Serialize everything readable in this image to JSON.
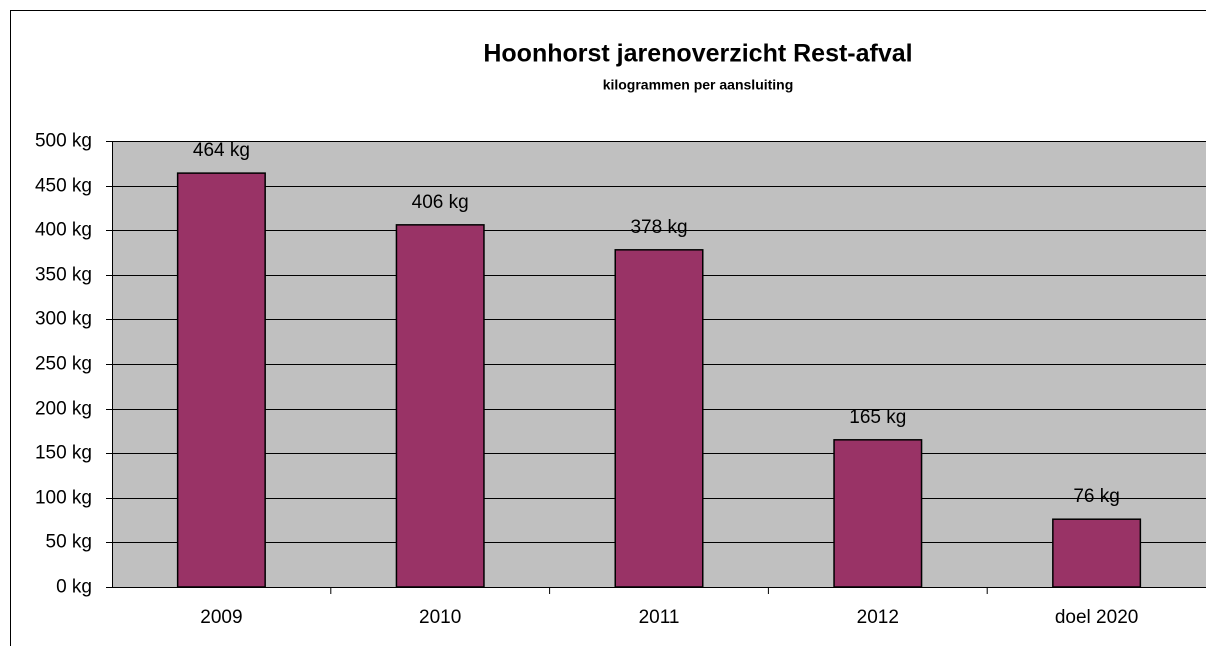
{
  "chart_data": {
    "type": "bar",
    "title": "Hoonhorst jarenoverzicht Rest-afval",
    "subtitle": "kilogrammen per aansluiting",
    "categories": [
      "2009",
      "2010",
      "2011",
      "2012",
      "doel 2020"
    ],
    "values": [
      464,
      406,
      378,
      165,
      76
    ],
    "value_labels": [
      "464 kg",
      "406 kg",
      "378 kg",
      "165 kg",
      "76 kg"
    ],
    "color": "#993366",
    "ylim": [
      0,
      500
    ],
    "yticks": [
      {
        "value": 0,
        "label": "0 kg"
      },
      {
        "value": 50,
        "label": "50 kg"
      },
      {
        "value": 100,
        "label": "100 kg"
      },
      {
        "value": 150,
        "label": "150 kg"
      },
      {
        "value": 200,
        "label": "200 kg"
      },
      {
        "value": 250,
        "label": "250 kg"
      },
      {
        "value": 300,
        "label": "300 kg"
      },
      {
        "value": 350,
        "label": "350 kg"
      },
      {
        "value": 400,
        "label": "400 kg"
      },
      {
        "value": 450,
        "label": "450 kg"
      },
      {
        "value": 500,
        "label": "500 kg"
      }
    ],
    "grid": true
  }
}
